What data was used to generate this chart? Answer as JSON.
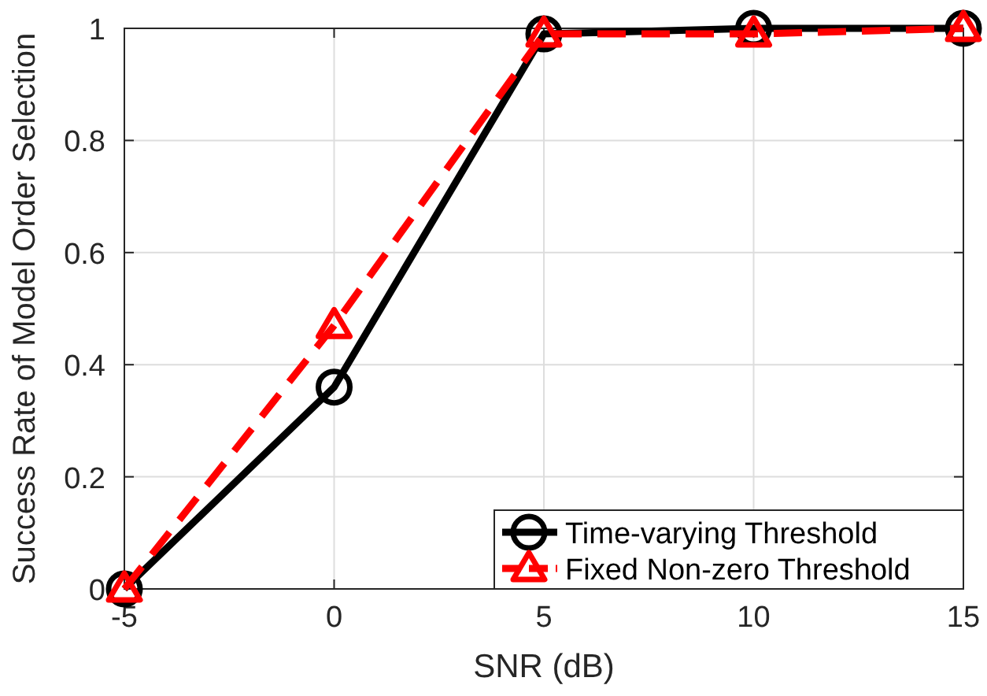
{
  "chart_data": {
    "type": "line",
    "xlabel": "SNR (dB)",
    "ylabel": "Success Rate of Model Order Selection",
    "x": [
      -5,
      0,
      5,
      10,
      15
    ],
    "series": [
      {
        "name": "Time-varying Threshold",
        "color": "#000000",
        "values": [
          0,
          0.36,
          0.99,
          1,
          1
        ],
        "marker": "circle",
        "line_style": "solid"
      },
      {
        "name": "Fixed Non-zero Threshold",
        "color": "#ff0000",
        "values": [
          0,
          0.47,
          0.99,
          0.99,
          1
        ],
        "marker": "triangle",
        "line_style": "dashed"
      }
    ],
    "xlim": [
      -5,
      15
    ],
    "xticks": [
      -5,
      0,
      5,
      10,
      15
    ],
    "ylim": [
      0,
      1
    ],
    "yticks": [
      0,
      0.2,
      0.4,
      0.6,
      0.8,
      1
    ],
    "grid": true,
    "legend": "bottom right"
  }
}
